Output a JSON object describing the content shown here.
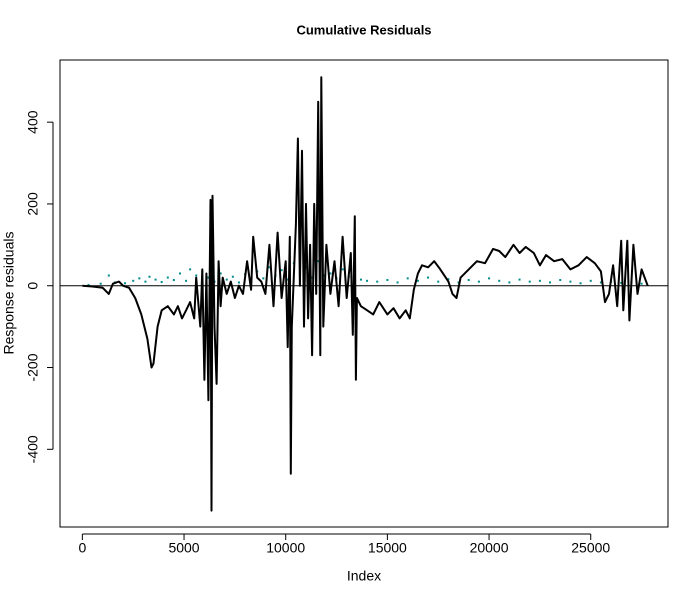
{
  "chart_data": {
    "type": "line",
    "title": "Cumulative Residuals",
    "xlabel": "Index",
    "ylabel": "Response  residuals",
    "xlim": [
      -1100,
      28800
    ],
    "ylim": [
      -590,
      552
    ],
    "xticks": [
      0,
      5000,
      10000,
      15000,
      20000,
      25000
    ],
    "yticks": [
      -400,
      -200,
      0,
      200,
      400
    ],
    "hline": 0,
    "series": [
      {
        "color": "#000000",
        "x": [
          0,
          500,
          1000,
          1300,
          1500,
          1800,
          2000,
          2300,
          2600,
          2900,
          3200,
          3400,
          3500,
          3700,
          3900,
          4200,
          4500,
          4700,
          4900,
          5100,
          5300,
          5500,
          5600,
          5800,
          5900,
          6000,
          6100,
          6200,
          6300,
          6350,
          6400,
          6500,
          6600,
          6700,
          6800,
          6900,
          7100,
          7300,
          7500,
          7700,
          7900,
          8100,
          8300,
          8400,
          8600,
          8800,
          9000,
          9200,
          9400,
          9600,
          9800,
          10000,
          10100,
          10200,
          10250,
          10300,
          10500,
          10600,
          10700,
          10800,
          10900,
          11000,
          11100,
          11200,
          11300,
          11400,
          11500,
          11600,
          11700,
          11750,
          11850,
          12000,
          12200,
          12400,
          12600,
          12800,
          13000,
          13200,
          13300,
          13400,
          13450,
          13500,
          13700,
          14000,
          14300,
          14600,
          15000,
          15300,
          15600,
          15900,
          16100,
          16300,
          16500,
          16700,
          17000,
          17300,
          17600,
          18000,
          18200,
          18400,
          18600,
          19000,
          19400,
          19800,
          20200,
          20500,
          20800,
          21200,
          21500,
          21800,
          22200,
          22500,
          22800,
          23200,
          23600,
          24000,
          24400,
          24800,
          25200,
          25500,
          25700,
          25900,
          26100,
          26300,
          26500,
          26600,
          26800,
          26900,
          27100,
          27300,
          27500,
          27800
        ],
        "values": [
          0,
          -2,
          -5,
          -20,
          5,
          10,
          0,
          -5,
          -30,
          -70,
          -130,
          -200,
          -190,
          -100,
          -60,
          -50,
          -70,
          -50,
          -80,
          -60,
          -40,
          -80,
          20,
          -100,
          40,
          -230,
          30,
          -280,
          210,
          -550,
          220,
          -100,
          -240,
          60,
          -50,
          20,
          -20,
          10,
          -30,
          0,
          -20,
          60,
          -10,
          120,
          20,
          10,
          -20,
          100,
          -50,
          130,
          -30,
          60,
          -150,
          120,
          -460,
          -100,
          150,
          360,
          0,
          330,
          -100,
          200,
          -80,
          100,
          -170,
          200,
          -20,
          450,
          -170,
          510,
          -100,
          100,
          -20,
          60,
          -50,
          120,
          -30,
          80,
          -120,
          170,
          -230,
          -30,
          -50,
          -60,
          -70,
          -40,
          -70,
          -55,
          -80,
          -60,
          -80,
          -10,
          30,
          50,
          45,
          60,
          40,
          10,
          -20,
          -30,
          20,
          40,
          60,
          55,
          90,
          85,
          70,
          100,
          80,
          95,
          80,
          50,
          75,
          60,
          65,
          40,
          50,
          70,
          55,
          35,
          -40,
          -20,
          50,
          -50,
          110,
          -60,
          110,
          -85,
          100,
          -20,
          40,
          0
        ]
      },
      {
        "color": "#008b8b",
        "x": [
          300,
          900,
          1300,
          1600,
          2100,
          2500,
          2800,
          3100,
          3300,
          3600,
          3900,
          4200,
          4500,
          4800,
          5100,
          5300,
          5600,
          5900,
          6200,
          6500,
          6800,
          7100,
          7400,
          7700,
          8000,
          8300,
          8600,
          8900,
          9200,
          9500,
          9800,
          10100,
          10400,
          10700,
          11000,
          11300,
          11600,
          11900,
          12200,
          12500,
          12800,
          13100,
          13400,
          13700,
          14000,
          14500,
          15000,
          15500,
          16000,
          16500,
          17000,
          17500,
          18000,
          18500,
          19000,
          19500,
          20000,
          20500,
          21000,
          21500,
          22000,
          22500,
          23000,
          23500,
          24000,
          24500,
          25000,
          25500,
          26000,
          26500,
          27000,
          27500
        ],
        "values": [
          2,
          5,
          25,
          8,
          6,
          12,
          18,
          10,
          22,
          15,
          9,
          20,
          14,
          30,
          12,
          40,
          25,
          35,
          20,
          10,
          30,
          15,
          22,
          8,
          28,
          12,
          35,
          18,
          45,
          25,
          38,
          15,
          55,
          30,
          45,
          20,
          60,
          25,
          30,
          18,
          40,
          22,
          50,
          15,
          12,
          10,
          14,
          8,
          18,
          12,
          20,
          10,
          16,
          8,
          14,
          10,
          18,
          12,
          8,
          15,
          10,
          12,
          8,
          14,
          10,
          6,
          12,
          8,
          10,
          7,
          9,
          5
        ]
      }
    ]
  }
}
